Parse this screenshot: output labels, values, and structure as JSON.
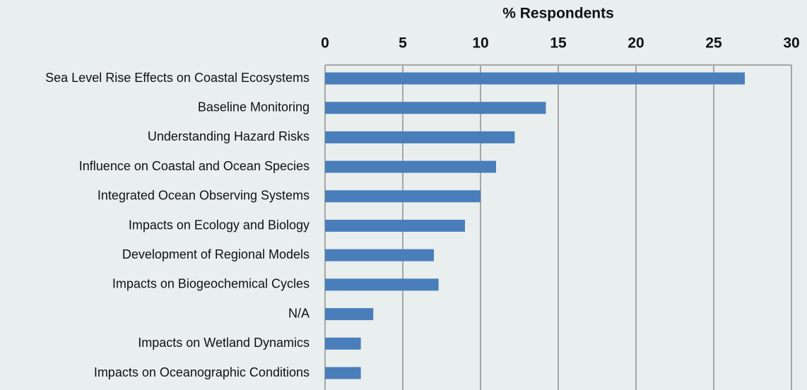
{
  "chart_data": {
    "type": "barh",
    "title": "% Respondents",
    "categories": [
      "Sea Level Rise Effects on Coastal Ecosystems",
      "Baseline Monitoring",
      "Understanding Hazard Risks",
      "Influence on Coastal and Ocean Species",
      "Integrated Ocean Observing Systems",
      "Impacts on Ecology and Biology",
      "Development of Regional Models",
      "Impacts on Biogeochemical Cycles",
      "N/A",
      "Impacts on Wetland Dynamics",
      "Impacts on Oceanographic Conditions"
    ],
    "values": [
      27.0,
      14.2,
      12.2,
      11.0,
      10.0,
      9.0,
      7.0,
      7.3,
      3.1,
      2.3,
      2.3
    ],
    "color": "#4a7ebb",
    "xlim": [
      0,
      30
    ],
    "xticks": [
      0,
      5,
      10,
      15,
      20,
      25,
      30
    ],
    "grid": true
  }
}
